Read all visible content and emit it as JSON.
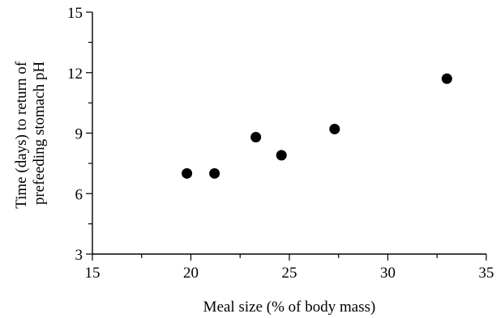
{
  "chart_data": {
    "type": "scatter",
    "xlabel": "Meal size (% of body mass)",
    "ylabel_lines": [
      "Time (days) to return of",
      "prefeeding stomach pH"
    ],
    "xlim": [
      15,
      35
    ],
    "ylim": [
      3,
      15
    ],
    "xticks": [
      15,
      20,
      25,
      30,
      35
    ],
    "yticks": [
      3,
      6,
      9,
      12,
      15
    ],
    "grid": false,
    "legend": "none",
    "points": [
      {
        "x": 19.8,
        "y": 7.0
      },
      {
        "x": 21.2,
        "y": 7.0
      },
      {
        "x": 23.3,
        "y": 8.8
      },
      {
        "x": 24.6,
        "y": 7.9
      },
      {
        "x": 27.3,
        "y": 9.2
      },
      {
        "x": 33.0,
        "y": 11.7
      }
    ],
    "marker_color": "#000000"
  }
}
